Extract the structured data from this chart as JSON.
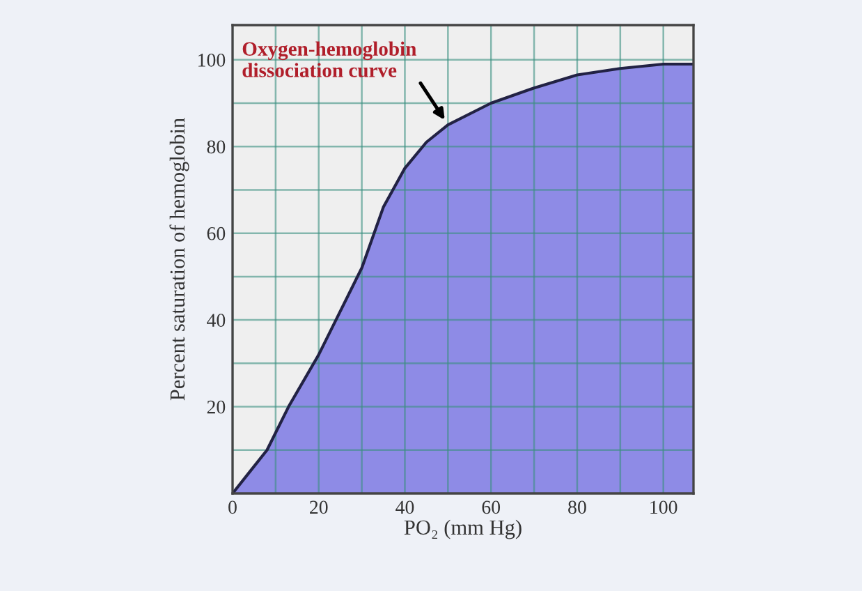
{
  "chart_data": {
    "type": "area",
    "xlabel": "PO₂ (mm Hg)",
    "ylabel": "Percent saturation of hemoglobin",
    "x": [
      0,
      4,
      8,
      13,
      20,
      24,
      30,
      35,
      40,
      45,
      50,
      60,
      70,
      80,
      90,
      100,
      107
    ],
    "series": [
      {
        "color": "#8e8be6",
        "values": [
          0,
          5,
          10,
          20,
          32,
          40,
          52,
          66,
          75,
          81,
          85,
          90,
          93.5,
          96.5,
          98,
          99,
          99
        ]
      }
    ],
    "xlim": [
      0,
      107
    ],
    "ylim": [
      0,
      108
    ],
    "xticks": [
      0,
      {
        "value": 10,
        "label": null
      },
      20,
      {
        "value": 30,
        "label": null
      },
      40,
      {
        "value": 50,
        "label": null
      },
      60,
      {
        "value": 70,
        "label": null
      },
      80,
      {
        "value": 90,
        "label": null
      },
      100
    ],
    "yticks": [
      {
        "value": 10,
        "label": null
      },
      20,
      {
        "value": 30,
        "label": null
      },
      40,
      {
        "value": 50,
        "label": null
      },
      60,
      {
        "value": 70,
        "label": null
      },
      80,
      {
        "value": 90,
        "label": null
      },
      100
    ],
    "grid": true,
    "annotations": [
      {
        "text": "Oxygen-hemoglobin\ndissociation curve",
        "x": 50,
        "y": 85
      }
    ]
  }
}
